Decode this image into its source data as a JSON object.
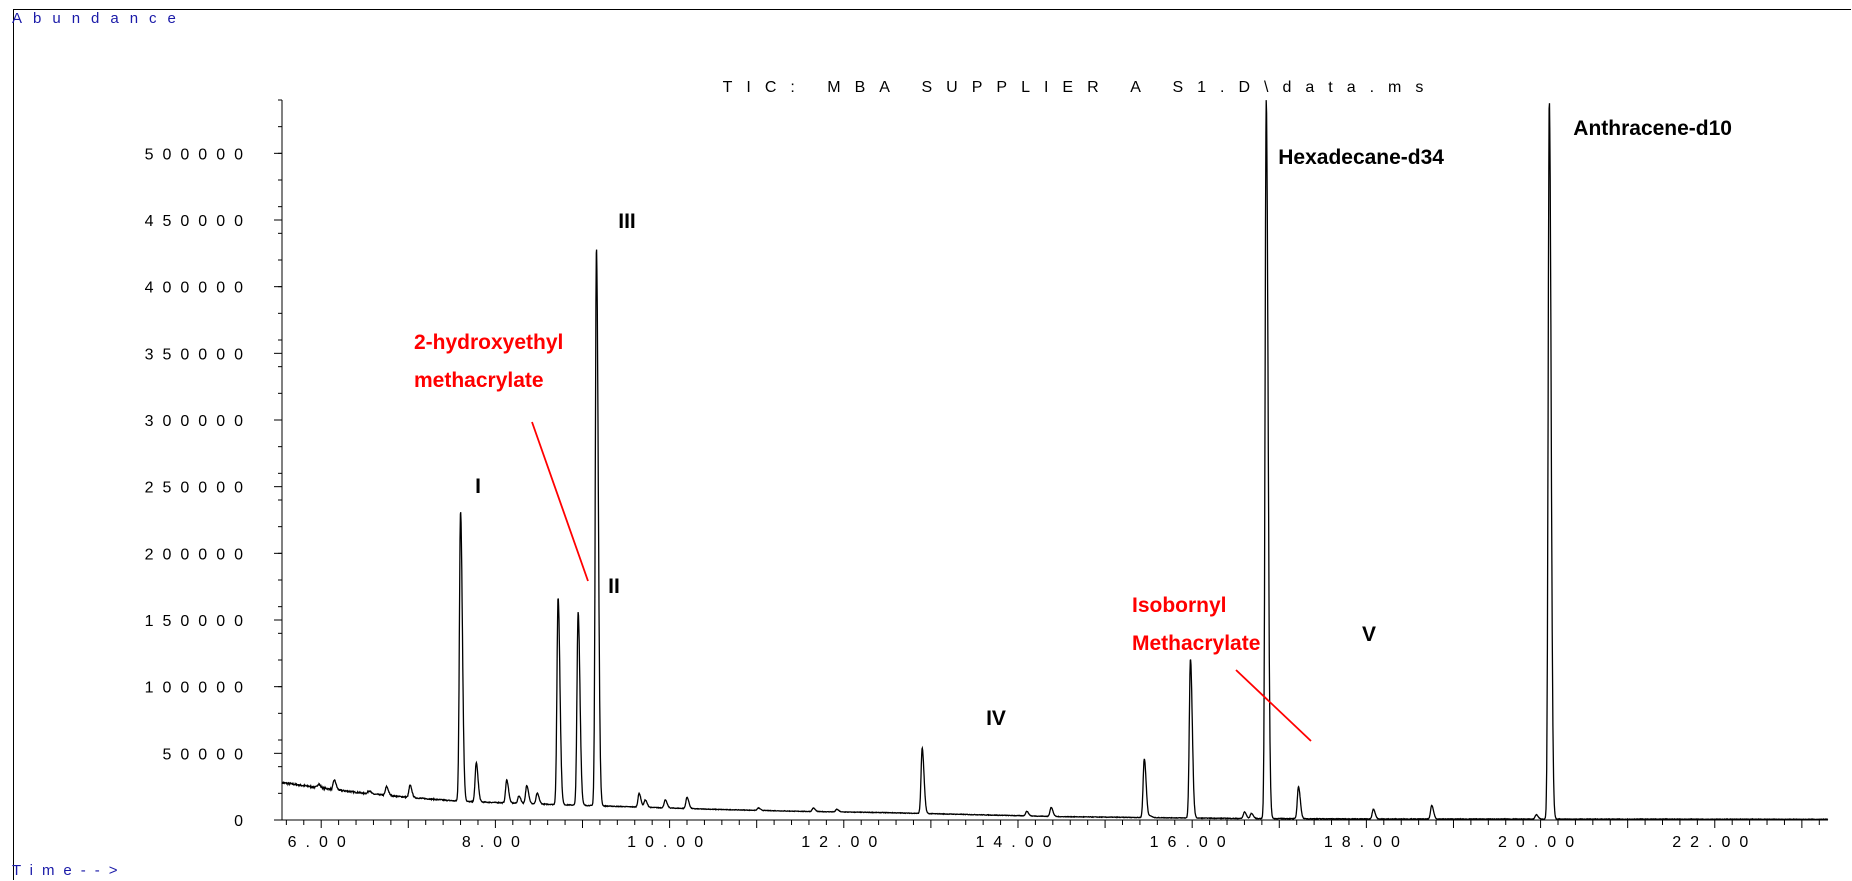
{
  "chart_data": {
    "type": "line",
    "title": "TIC: MBA SUPPLIER A S1.D\\data.ms",
    "ylabel": "Abundance",
    "xlabel": "Time-->",
    "ylim": [
      0,
      540000
    ],
    "xlim": [
      5.55,
      23.3
    ],
    "y_ticks": [
      0,
      50000,
      100000,
      150000,
      200000,
      250000,
      300000,
      350000,
      400000,
      450000,
      500000
    ],
    "y_tick_labels": [
      "0",
      "50000",
      "100000",
      "150000",
      "200000",
      "250000",
      "300000",
      "350000",
      "400000",
      "450000",
      "500000"
    ],
    "x_ticks": [
      6,
      8,
      10,
      12,
      14,
      16,
      18,
      20,
      22
    ],
    "x_tick_labels": [
      "6.00",
      "8.00",
      "10.00",
      "12.00",
      "14.00",
      "16.00",
      "18.00",
      "20.00",
      "22.00"
    ],
    "grid": false,
    "line_color": "#000000",
    "baseline": [
      [
        5.55,
        28000
      ],
      [
        6.0,
        24000
      ],
      [
        6.5,
        20000
      ],
      [
        7.0,
        17000
      ],
      [
        7.6,
        14000
      ],
      [
        8.5,
        12000
      ],
      [
        9.5,
        10000
      ],
      [
        10.5,
        8000
      ],
      [
        11.5,
        6500
      ],
      [
        12.5,
        5500
      ],
      [
        13.5,
        4000
      ],
      [
        14.5,
        2500
      ],
      [
        15.5,
        1800
      ],
      [
        16.5,
        1200
      ],
      [
        18.0,
        800
      ],
      [
        20.0,
        700
      ],
      [
        22.0,
        600
      ],
      [
        23.3,
        500
      ]
    ],
    "peaks": [
      {
        "x": 5.97,
        "y": 27000,
        "label": ""
      },
      {
        "x": 6.15,
        "y": 30000,
        "label": ""
      },
      {
        "x": 6.55,
        "y": 22000,
        "label": ""
      },
      {
        "x": 6.75,
        "y": 25000,
        "label": ""
      },
      {
        "x": 7.02,
        "y": 26000,
        "label": ""
      },
      {
        "x": 7.6,
        "y": 232000,
        "label": "I"
      },
      {
        "x": 7.78,
        "y": 43000,
        "label": ""
      },
      {
        "x": 8.13,
        "y": 30000,
        "label": ""
      },
      {
        "x": 8.27,
        "y": 18000,
        "label": ""
      },
      {
        "x": 8.36,
        "y": 26000,
        "label": ""
      },
      {
        "x": 8.48,
        "y": 20000,
        "label": ""
      },
      {
        "x": 8.72,
        "y": 167000,
        "label": ""
      },
      {
        "x": 8.95,
        "y": 156000,
        "label": "II"
      },
      {
        "x": 9.16,
        "y": 430000,
        "label": "III"
      },
      {
        "x": 9.65,
        "y": 20000,
        "label": ""
      },
      {
        "x": 9.72,
        "y": 15000,
        "label": ""
      },
      {
        "x": 9.95,
        "y": 15000,
        "label": ""
      },
      {
        "x": 10.2,
        "y": 17000,
        "label": ""
      },
      {
        "x": 11.02,
        "y": 9000,
        "label": ""
      },
      {
        "x": 11.65,
        "y": 9000,
        "label": ""
      },
      {
        "x": 11.92,
        "y": 8000,
        "label": ""
      },
      {
        "x": 12.3,
        "y": 5000,
        "label": ""
      },
      {
        "x": 12.5,
        "y": 4000,
        "label": ""
      },
      {
        "x": 12.6,
        "y": 4500,
        "label": ""
      },
      {
        "x": 12.9,
        "y": 54000,
        "label": "IV"
      },
      {
        "x": 13.05,
        "y": 3000,
        "label": ""
      },
      {
        "x": 14.1,
        "y": 6500,
        "label": ""
      },
      {
        "x": 14.38,
        "y": 9500,
        "label": ""
      },
      {
        "x": 15.45,
        "y": 46000,
        "label": ""
      },
      {
        "x": 15.52,
        "y": 3000,
        "label": ""
      },
      {
        "x": 15.98,
        "y": 121000,
        "label": "V"
      },
      {
        "x": 16.6,
        "y": 6000,
        "label": ""
      },
      {
        "x": 16.68,
        "y": 5000,
        "label": ""
      },
      {
        "x": 16.85,
        "y": 540000,
        "label": ""
      },
      {
        "x": 17.22,
        "y": 25000,
        "label": ""
      },
      {
        "x": 18.08,
        "y": 8000,
        "label": ""
      },
      {
        "x": 18.75,
        "y": 11000,
        "label": ""
      },
      {
        "x": 19.95,
        "y": 4000,
        "label": ""
      },
      {
        "x": 20.1,
        "y": 540000,
        "label": ""
      }
    ],
    "annotations": [
      {
        "text": "I"
      },
      {
        "text": "II"
      },
      {
        "text": "III"
      },
      {
        "text": "IV"
      },
      {
        "text": "V"
      },
      {
        "text": "Hexadecane-d34"
      },
      {
        "text": "Anthracene-d10"
      },
      {
        "text_lines": [
          "2-hydroxyethyl",
          "methacrylate"
        ],
        "color": "#ff0000"
      },
      {
        "text_lines": [
          "Isobornyl",
          "Methacrylate"
        ],
        "color": "#ff0000"
      }
    ]
  }
}
